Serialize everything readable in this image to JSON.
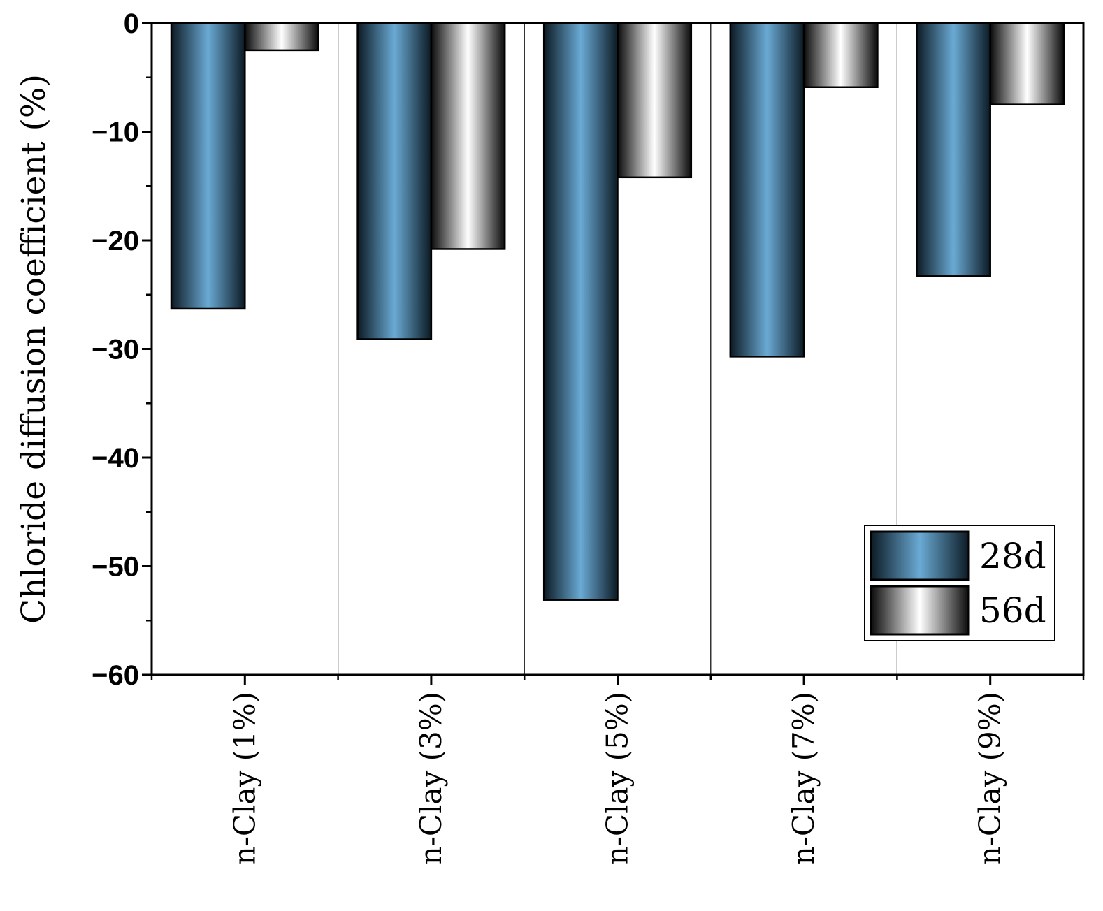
{
  "chart_data": {
    "type": "bar",
    "title": "",
    "xlabel": "",
    "ylabel": "Chloride diffusion coefficient (%)",
    "categories": [
      "n-Clay (1%)",
      "n-Clay (3%)",
      "n-Clay (5%)",
      "n-Clay (7%)",
      "n-Clay (9%)"
    ],
    "series": [
      {
        "name": "28d",
        "values": [
          -26.3,
          -29.1,
          -53.1,
          -30.7,
          -23.3
        ],
        "color": "#6aaad4",
        "edge_color": "#0c1a24"
      },
      {
        "name": "56d",
        "values": [
          -2.5,
          -20.8,
          -14.2,
          -5.9,
          -7.5
        ],
        "color": "#ffffff",
        "edge_color": "#0a0a0a"
      }
    ],
    "ylim": [
      -60,
      0
    ],
    "yticks": [
      0,
      -10,
      -20,
      -30,
      -40,
      -50,
      -60
    ],
    "ytick_labels": [
      "0",
      "−10",
      "−20",
      "−30",
      "−40",
      "−50",
      "−60"
    ],
    "category_dividers": true,
    "grid": false,
    "legend_position": "bottom-right"
  }
}
